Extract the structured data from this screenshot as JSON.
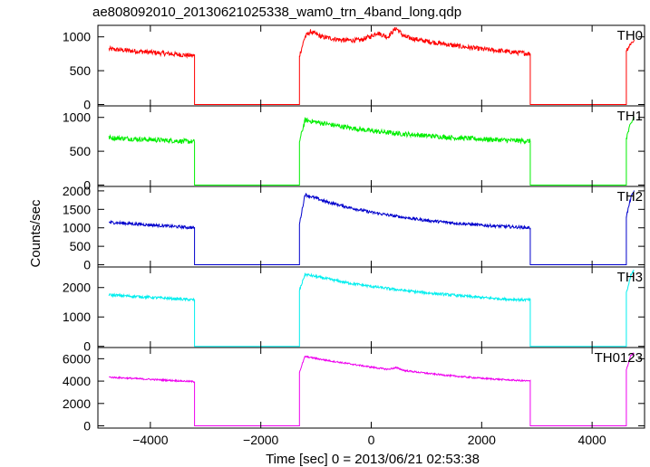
{
  "chart_data": {
    "type": "line",
    "title": "ae808092010_20130621025338_wam0_trn_4band_long.qdp",
    "xlabel": "Time [sec] 0 = 2013/06/21 02:53:38",
    "ylabel": "Counts/sec",
    "xlim": [
      -4950,
      4950
    ],
    "xticks": [
      -4000,
      -2000,
      0,
      2000,
      4000
    ],
    "xtick_labels": [
      "−4000",
      "−2000",
      "0",
      "2000",
      "4000"
    ],
    "grid": false,
    "panels": [
      {
        "name": "TH0",
        "color": "#ff0000",
        "ylim": [
          -20,
          1170
        ],
        "yticks": [
          0,
          500,
          1000
        ],
        "ytick_labels": [
          "0",
          "500",
          "1000"
        ],
        "x": [
          -4750,
          -3200,
          -3200,
          -1300,
          -1300,
          -1200,
          -1100,
          -900,
          -500,
          -200,
          0,
          100,
          300,
          450,
          600,
          900,
          1500,
          2000,
          2500,
          2880,
          2880,
          4620,
          4620,
          4700,
          4760
        ],
        "y": [
          820,
          720,
          0,
          0,
          720,
          1000,
          1080,
          1000,
          950,
          950,
          1010,
          1060,
          1000,
          1130,
          1000,
          950,
          870,
          820,
          780,
          750,
          0,
          0,
          800,
          900,
          950
        ],
        "noise": 35
      },
      {
        "name": "TH1",
        "color": "#00ee00",
        "ylim": [
          -20,
          1170
        ],
        "yticks": [
          0,
          500,
          1000
        ],
        "ytick_labels": [
          "0",
          "500",
          "1000"
        ],
        "x": [
          -4750,
          -3200,
          -3200,
          -1300,
          -1300,
          -1200,
          -500,
          0,
          500,
          1000,
          1500,
          2000,
          2500,
          2880,
          2880,
          4620,
          4620,
          4700,
          4760
        ],
        "y": [
          700,
          640,
          0,
          0,
          640,
          960,
          860,
          800,
          760,
          730,
          700,
          680,
          660,
          650,
          0,
          0,
          700,
          900,
          1000
        ],
        "noise": 35
      },
      {
        "name": "TH2",
        "color": "#0000cc",
        "ylim": [
          -60,
          2120
        ],
        "yticks": [
          0,
          500,
          1000,
          1500,
          2000
        ],
        "ytick_labels": [
          "0",
          "500",
          "1000",
          "1500",
          "2000"
        ],
        "x": [
          -4750,
          -3200,
          -3200,
          -1300,
          -1300,
          -1200,
          -800,
          -400,
          0,
          500,
          1000,
          1500,
          2000,
          2500,
          2880,
          2880,
          4620,
          4620,
          4700,
          4760
        ],
        "y": [
          1150,
          1000,
          0,
          0,
          1100,
          1900,
          1700,
          1550,
          1420,
          1300,
          1200,
          1130,
          1070,
          1030,
          1000,
          0,
          0,
          1300,
          1800,
          2000
        ],
        "noise": 40
      },
      {
        "name": "TH3",
        "color": "#00eeee",
        "ylim": [
          -40,
          2700
        ],
        "yticks": [
          0,
          1000,
          2000
        ],
        "ytick_labels": [
          "0",
          "1000",
          "2000"
        ],
        "x": [
          -4750,
          -3200,
          -3200,
          -1300,
          -1300,
          -1200,
          -800,
          -400,
          0,
          500,
          1000,
          1500,
          2000,
          2500,
          2880,
          2880,
          4620,
          4620,
          4700,
          4760
        ],
        "y": [
          1750,
          1580,
          0,
          0,
          1900,
          2450,
          2300,
          2150,
          2040,
          1920,
          1820,
          1740,
          1660,
          1600,
          1580,
          0,
          0,
          1800,
          2400,
          2600
        ],
        "noise": 45
      },
      {
        "name": "TH0123",
        "color": "#ee00ee",
        "ylim": [
          -200,
          7000
        ],
        "yticks": [
          0,
          2000,
          4000,
          6000
        ],
        "ytick_labels": [
          "0",
          "2000",
          "4000",
          "6000"
        ],
        "x": [
          -4750,
          -3200,
          -3200,
          -1300,
          -1300,
          -1200,
          -800,
          -400,
          0,
          300,
          450,
          600,
          1000,
          1500,
          2000,
          2500,
          2880,
          2880,
          4620,
          4620,
          4700,
          4760
        ],
        "y": [
          4350,
          3950,
          0,
          0,
          4800,
          6200,
          5850,
          5550,
          5250,
          5050,
          5200,
          4950,
          4700,
          4450,
          4250,
          4100,
          4000,
          0,
          0,
          5000,
          6300,
          6500
        ],
        "noise": 70
      }
    ]
  }
}
